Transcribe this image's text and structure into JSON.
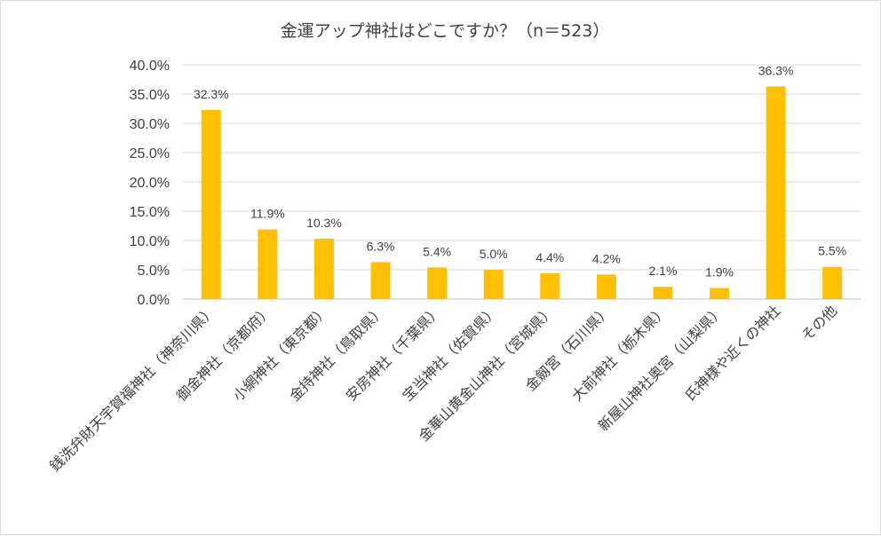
{
  "chart_data": {
    "type": "bar",
    "title": "金運アップ神社はどこですか？（n＝523）",
    "xlabel": "",
    "ylabel": "",
    "ylim": [
      0,
      40
    ],
    "yticks": [
      "0.0%",
      "5.0%",
      "10.0%",
      "15.0%",
      "20.0%",
      "25.0%",
      "30.0%",
      "35.0%",
      "40.0%"
    ],
    "grid": true,
    "legend": "none",
    "bar_color": "#FFC000",
    "categories": [
      "銭洗弁財天宇賀福神社（神奈川県）",
      "御金神社（京都府）",
      "小網神社（東京都）",
      "金持神社（鳥取県）",
      "安房神社（千葉県）",
      "宝当神社（佐賀県）",
      "金華山黄金山神社（宮城県）",
      "金劔宮（石川県）",
      "大前神社（栃木県）",
      "新屋山神社奥宮（山梨県）",
      "氏神様や近くの神社",
      "その他"
    ],
    "values": [
      32.3,
      11.9,
      10.3,
      6.3,
      5.4,
      5.0,
      4.4,
      4.2,
      2.1,
      1.9,
      36.3,
      5.5
    ],
    "data_labels": [
      "32.3%",
      "11.9%",
      "10.3%",
      "6.3%",
      "5.4%",
      "5.0%",
      "4.4%",
      "4.2%",
      "2.1%",
      "1.9%",
      "36.3%",
      "5.5%"
    ]
  }
}
